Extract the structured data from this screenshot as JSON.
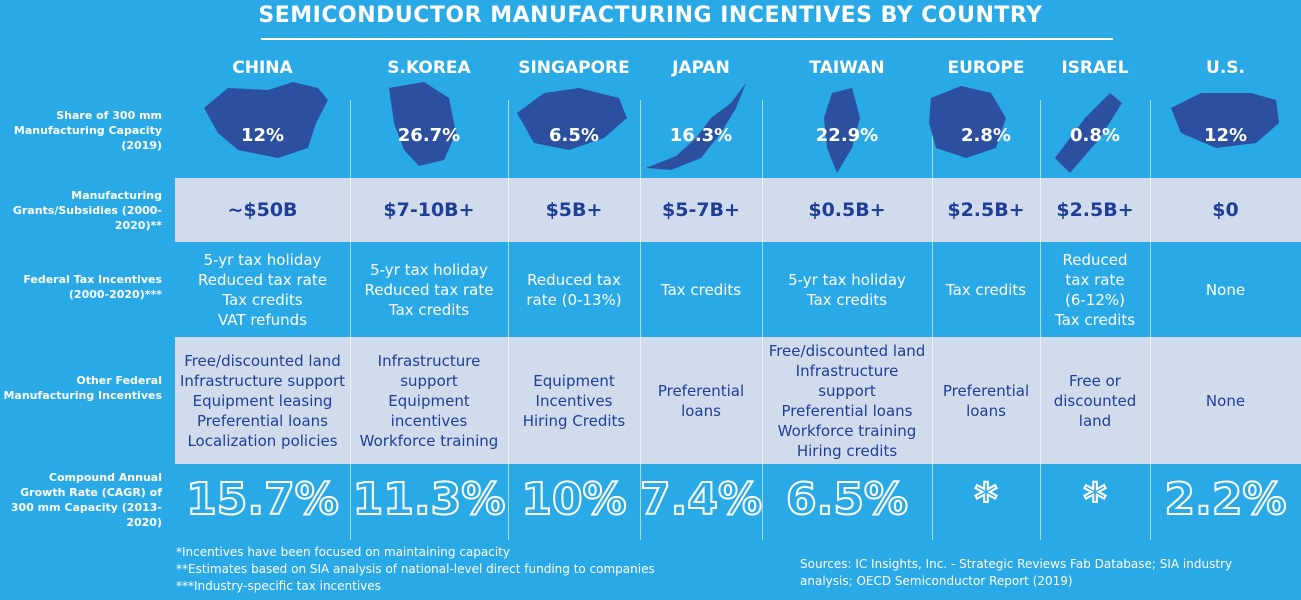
{
  "title": "SEMICONDUCTOR MANUFACTURING INCENTIVES BY COUNTRY",
  "row_labels": {
    "share": "Share of 300 mm Manufacturing Capacity (2019)",
    "grants": "Manufacturing Grants/Subsidies (2000-2020)**",
    "tax": "Federal Tax Incentives (2000-2020)***",
    "other": "Other Federal Manufacturing Incentives",
    "cagr": "Compound Annual Growth Rate (CAGR) of 300 mm Capacity (2013-2020)"
  },
  "chart_data": {
    "type": "table",
    "title": "SEMICONDUCTOR MANUFACTURING INCENTIVES BY COUNTRY",
    "columns": [
      "CHINA",
      "S.KOREA",
      "SINGAPORE",
      "JAPAN",
      "TAIWAN",
      "EUROPE",
      "ISRAEL",
      "U.S."
    ],
    "share": [
      "12%",
      "26.7%",
      "6.5%",
      "16.3%",
      "22.9%",
      "2.8%",
      "0.8%",
      "12%"
    ],
    "share_values": [
      12,
      26.7,
      6.5,
      16.3,
      22.9,
      2.8,
      0.8,
      12
    ],
    "grants": [
      "~$50B",
      "$7-10B+",
      "$5B+",
      "$5-7B+",
      "$0.5B+",
      "$2.5B+",
      "$2.5B+",
      "$0"
    ],
    "tax": [
      [
        "5-yr tax holiday",
        "Reduced tax rate",
        "Tax credits",
        "VAT refunds"
      ],
      [
        "5-yr tax holiday",
        "Reduced tax rate",
        "Tax credits"
      ],
      [
        "Reduced tax",
        "rate (0-13%)"
      ],
      [
        "Tax credits"
      ],
      [
        "5-yr tax holiday",
        "Tax credits"
      ],
      [
        "Tax credits"
      ],
      [
        "Reduced",
        "tax rate",
        "(6-12%)",
        "Tax credits"
      ],
      [
        "None"
      ]
    ],
    "other": [
      [
        "Free/discounted land",
        "Infrastructure support",
        "Equipment leasing",
        "Preferential loans",
        "Localization policies"
      ],
      [
        "Infrastructure",
        "support",
        "Equipment",
        "incentives",
        "Workforce training"
      ],
      [
        "Equipment",
        "Incentives",
        "Hiring Credits"
      ],
      [
        "Preferential",
        "loans"
      ],
      [
        "Free/discounted land",
        "Infrastructure",
        "support",
        "Preferential loans",
        "Workforce training",
        "Hiring credits"
      ],
      [
        "Preferential",
        "loans"
      ],
      [
        "Free or",
        "discounted",
        "land"
      ],
      [
        "None"
      ]
    ],
    "cagr": [
      "15.7%",
      "11.3%",
      "10%",
      "7.4%",
      "6.5%",
      "*",
      "*",
      "2.2%"
    ]
  },
  "footnotes": [
    "*Incentives have been focused on maintaining capacity",
    "**Estimates based on SIA analysis of national-level direct funding to companies",
    "***Industry-specific tax incentives"
  ],
  "sources": "Sources:  IC Insights, Inc. - Strategic Reviews Fab Database; SIA industry analysis; OECD Semiconductor Report (2019)",
  "colors": {
    "background": "#29a9e6",
    "band": "#d0dbec",
    "navy": "#1f3e96",
    "white": "#ffffff"
  }
}
